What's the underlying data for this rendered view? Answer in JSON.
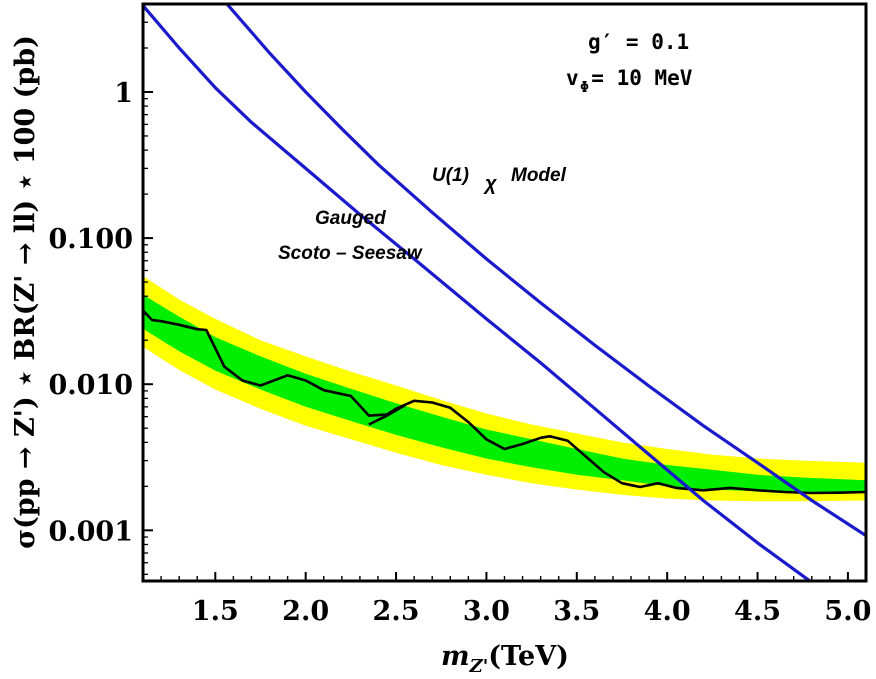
{
  "chart_data": {
    "type": "line",
    "title": "",
    "xlabel": "m_{Z'}(TeV)",
    "ylabel": "σ(pp → Z') ⋆ BR(Z' → ll) ⋆ 100 (pb)",
    "xlim": [
      1.1,
      5.1
    ],
    "ylim": [
      0.00045,
      4.0
    ],
    "yscale": "log",
    "x_ticks": [
      1.5,
      2.0,
      2.5,
      3.0,
      3.5,
      4.0,
      4.5,
      5.0
    ],
    "x_tick_labels": [
      "1.5",
      "2.0",
      "2.5",
      "3.0",
      "3.5",
      "4.0",
      "4.5",
      "5.0"
    ],
    "y_ticks": [
      1,
      0.1,
      0.01,
      0.001
    ],
    "y_tick_labels": [
      "1",
      "0.100",
      "0.010",
      "0.001"
    ],
    "grid": false,
    "annotations": {
      "coupling": "g′ = 0.1",
      "vev": "v  = 10 MeV",
      "vev_subscript": "Φ",
      "model_u1": "U(1)",
      "model_u1_sub": "χ",
      "model_u1_suffix": "Model",
      "model_scoto_line1": "Gauged",
      "model_scoto_line2": "Scoto – Seesaw"
    },
    "bands": [
      {
        "role": "expected ±2σ",
        "color": "#ffff00",
        "x": [
          1.1,
          1.3,
          1.5,
          1.75,
          2.0,
          2.25,
          2.5,
          2.75,
          3.0,
          3.25,
          3.5,
          3.75,
          4.0,
          4.25,
          4.5,
          4.75,
          5.1
        ],
        "lower": [
          0.018,
          0.0125,
          0.0092,
          0.0068,
          0.0052,
          0.0042,
          0.0034,
          0.0028,
          0.0024,
          0.0021,
          0.0019,
          0.00175,
          0.00165,
          0.0016,
          0.00158,
          0.00158,
          0.0016
        ],
        "upper": [
          0.055,
          0.038,
          0.028,
          0.02,
          0.0155,
          0.0122,
          0.0098,
          0.0078,
          0.0063,
          0.0053,
          0.0046,
          0.004,
          0.0036,
          0.0033,
          0.0031,
          0.003,
          0.0029
        ]
      },
      {
        "role": "expected ±1σ",
        "color": "#00ee00",
        "x": [
          1.1,
          1.3,
          1.5,
          1.75,
          2.0,
          2.25,
          2.5,
          2.75,
          3.0,
          3.25,
          3.5,
          3.75,
          4.0,
          4.25,
          4.5,
          4.75,
          5.1
        ],
        "lower": [
          0.024,
          0.0168,
          0.0124,
          0.0092,
          0.007,
          0.0056,
          0.0045,
          0.0037,
          0.0031,
          0.0027,
          0.0024,
          0.0022,
          0.002,
          0.0019,
          0.00185,
          0.00182,
          0.00182
        ],
        "upper": [
          0.041,
          0.029,
          0.021,
          0.0155,
          0.0118,
          0.0093,
          0.0074,
          0.006,
          0.0049,
          0.0042,
          0.0036,
          0.0031,
          0.0028,
          0.0026,
          0.0024,
          0.0023,
          0.0022
        ]
      }
    ],
    "series": [
      {
        "role": "observed limit",
        "color": "#000000",
        "x": [
          1.1,
          1.15,
          1.2,
          1.3,
          1.4,
          1.45,
          1.55,
          1.65,
          1.75,
          1.9,
          2.0,
          2.1,
          2.25,
          2.35,
          2.45,
          2.5,
          2.6,
          2.7,
          2.8,
          2.9,
          3.0,
          3.1,
          3.2,
          3.3,
          3.35,
          3.45,
          3.55,
          3.65,
          3.75,
          3.85,
          3.95,
          4.05,
          4.2,
          4.35,
          4.5,
          4.65,
          4.8,
          4.95,
          5.1
        ],
        "y": [
          0.032,
          0.0275,
          0.027,
          0.0255,
          0.0238,
          0.0235,
          0.0132,
          0.0106,
          0.0098,
          0.0115,
          0.0106,
          0.0091,
          0.0083,
          0.0061,
          0.0062,
          0.0068,
          0.0077,
          0.0075,
          0.0069,
          0.0055,
          0.0042,
          0.0036,
          0.0039,
          0.0043,
          0.0044,
          0.0041,
          0.0032,
          0.0025,
          0.0021,
          0.00198,
          0.0021,
          0.00195,
          0.00188,
          0.00195,
          0.00188,
          0.00183,
          0.0018,
          0.00181,
          0.00183
        ]
      },
      {
        "role": "observed limit (short segment)",
        "color": "#000000",
        "x": [
          2.35,
          2.45,
          2.55
        ],
        "y": [
          0.0053,
          0.0061,
          0.0072
        ]
      },
      {
        "name": "U(1)χ Model",
        "color": "#1a1acc",
        "x": [
          1.55,
          1.8,
          2.0,
          2.2,
          2.4,
          2.7,
          3.0,
          3.3,
          3.6,
          3.9,
          4.2,
          4.5,
          4.8,
          5.1
        ],
        "y": [
          4.2,
          1.85,
          1.0,
          0.56,
          0.32,
          0.15,
          0.072,
          0.036,
          0.0185,
          0.0097,
          0.0052,
          0.0029,
          0.0016,
          0.00092
        ]
      },
      {
        "name": "Gauged Scoto – Seesaw",
        "color": "#1a1acc",
        "x": [
          1.1,
          1.3,
          1.5,
          1.7,
          2.0,
          2.3,
          2.6,
          3.0,
          3.3,
          3.6,
          3.9,
          4.2,
          4.5,
          4.8
        ],
        "y": [
          3.9,
          2.0,
          1.07,
          0.62,
          0.3,
          0.145,
          0.072,
          0.028,
          0.014,
          0.0068,
          0.0033,
          0.0016,
          0.00082,
          0.00044
        ]
      }
    ]
  }
}
